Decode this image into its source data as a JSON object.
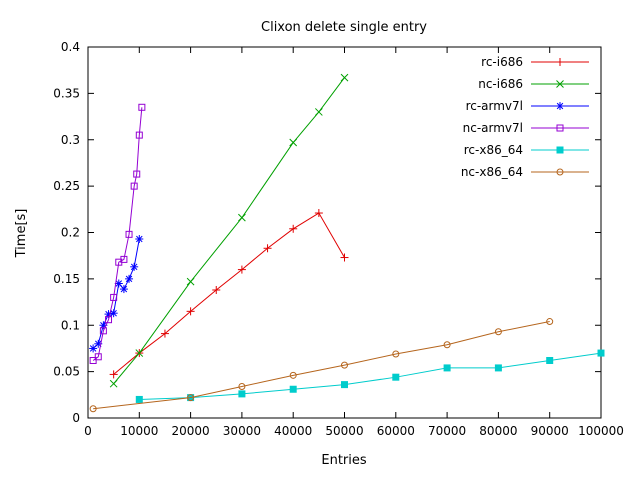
{
  "chart_data": {
    "type": "line",
    "title": "Clixon delete single entry",
    "xlabel": "Entries",
    "ylabel": "Time[s]",
    "xlim": [
      0,
      100000
    ],
    "ylim": [
      0,
      0.4
    ],
    "xtick_step": 10000,
    "ytick_step": 0.05,
    "grid": false,
    "legend_position": "top-right-inside",
    "axis_color": "#000000",
    "background_color": "#ffffff",
    "series": [
      {
        "name": "rc-i686",
        "color": "#e00000",
        "marker": "plus",
        "x": [
          5000,
          10000,
          15000,
          20000,
          25000,
          30000,
          35000,
          40000,
          45000,
          50000
        ],
        "y": [
          0.047,
          0.07,
          0.091,
          0.115,
          0.138,
          0.16,
          0.183,
          0.204,
          0.221,
          0.173
        ]
      },
      {
        "name": "nc-i686",
        "color": "#00a000",
        "marker": "cross",
        "x": [
          5000,
          10000,
          20000,
          30000,
          40000,
          45000,
          50000
        ],
        "y": [
          0.037,
          0.07,
          0.147,
          0.216,
          0.297,
          0.33,
          0.367
        ]
      },
      {
        "name": "rc-armv7l",
        "color": "#0000ff",
        "marker": "asterisk",
        "x": [
          1000,
          2000,
          3000,
          4000,
          5000,
          6000,
          7000,
          8000,
          9000,
          10000
        ],
        "y": [
          0.075,
          0.08,
          0.1,
          0.112,
          0.113,
          0.145,
          0.139,
          0.15,
          0.163,
          0.193
        ]
      },
      {
        "name": "nc-armv7l",
        "color": "#9400d3",
        "marker": "square-open",
        "x": [
          1000,
          2000,
          3000,
          4000,
          5000,
          6000,
          7000,
          8000,
          9000,
          9500,
          10000,
          10500
        ],
        "y": [
          0.062,
          0.066,
          0.094,
          0.106,
          0.13,
          0.168,
          0.171,
          0.198,
          0.25,
          0.263,
          0.305,
          0.335
        ]
      },
      {
        "name": "rc-x86_64",
        "color": "#00cccc",
        "marker": "square-filled",
        "x": [
          10000,
          20000,
          30000,
          40000,
          50000,
          60000,
          70000,
          80000,
          90000,
          100000
        ],
        "y": [
          0.02,
          0.022,
          0.026,
          0.031,
          0.036,
          0.044,
          0.054,
          0.054,
          0.062,
          0.07
        ]
      },
      {
        "name": "nc-x86_64",
        "color": "#b5651d",
        "marker": "circle-open",
        "x": [
          1000,
          20000,
          30000,
          40000,
          50000,
          60000,
          70000,
          80000,
          90000
        ],
        "y": [
          0.01,
          0.022,
          0.034,
          0.046,
          0.057,
          0.069,
          0.079,
          0.093,
          0.104
        ]
      }
    ]
  }
}
